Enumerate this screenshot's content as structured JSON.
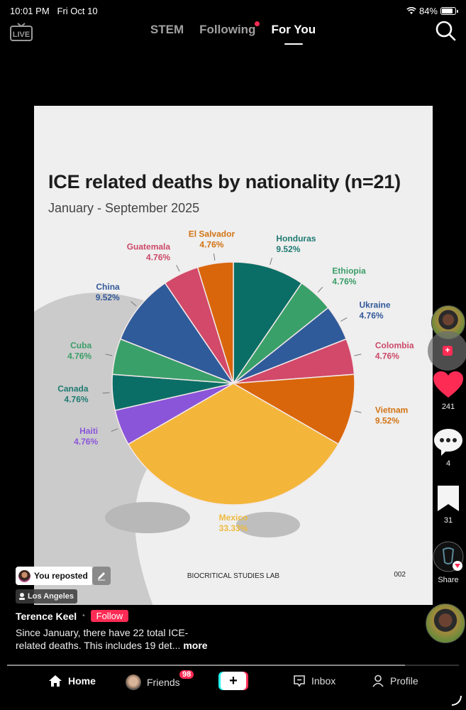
{
  "status_bar": {
    "time": "10:01 PM",
    "date": "Fri Oct 10",
    "battery": "84%"
  },
  "top_nav": {
    "live_label": "LIVE",
    "tabs": [
      {
        "label": "STEM",
        "active": false
      },
      {
        "label": "Following",
        "active": false,
        "has_dot": true
      },
      {
        "label": "For You",
        "active": true
      }
    ]
  },
  "post": {
    "footer_lab": "BIOCRITICAL STUDIES LAB",
    "footer_num": "002",
    "repost_label": "You reposted",
    "location": "Los Angeles",
    "author": "Terence Keel",
    "follow_label": "Follow",
    "caption_line1": "Since January, there have 22 total ICE-",
    "caption_line2": "related deaths. This includes 19 det...",
    "more_label": "more"
  },
  "right_rail": {
    "like_count": "241",
    "comment_count": "4",
    "bookmark_count": "31",
    "share_label": "Share"
  },
  "bottom_nav": {
    "home": "Home",
    "friends": "Friends",
    "friends_badge": "98",
    "create": "+",
    "inbox": "Inbox",
    "profile": "Profile"
  },
  "chart_data": {
    "type": "pie",
    "title": "ICE related deaths by nationality (n=21)",
    "subtitle": "January - September 2025",
    "xlabel": "",
    "ylabel": "",
    "legend": "direct labels",
    "categories": [
      "Honduras",
      "Ethiopia",
      "Ukraine",
      "Colombia",
      "Vietnam",
      "Mexico",
      "Haiti",
      "Canada",
      "Cuba",
      "China",
      "Guatemala",
      "El Salvador"
    ],
    "values": [
      9.52,
      4.76,
      4.76,
      4.76,
      9.52,
      33.33,
      4.76,
      4.76,
      4.76,
      9.52,
      4.76,
      4.76
    ],
    "counts": [
      2,
      1,
      1,
      1,
      2,
      7,
      1,
      1,
      1,
      2,
      1,
      1
    ],
    "labels": [
      "9.52%",
      "4.76%",
      "4.76%",
      "4.76%",
      "9.52%",
      "33.33%",
      "4.76%",
      "4.76%",
      "4.76%",
      "9.52%",
      "4.76%",
      "4.76%"
    ],
    "colors": [
      "#0b6e66",
      "#3aa06a",
      "#2f5b9a",
      "#d2496a",
      "#d9660a",
      "#f4b63a",
      "#8a55d8",
      "#0b6e66",
      "#3aa06a",
      "#2f5b9a",
      "#d2496a",
      "#d9660a"
    ],
    "start_angle": "top, clockwise"
  }
}
